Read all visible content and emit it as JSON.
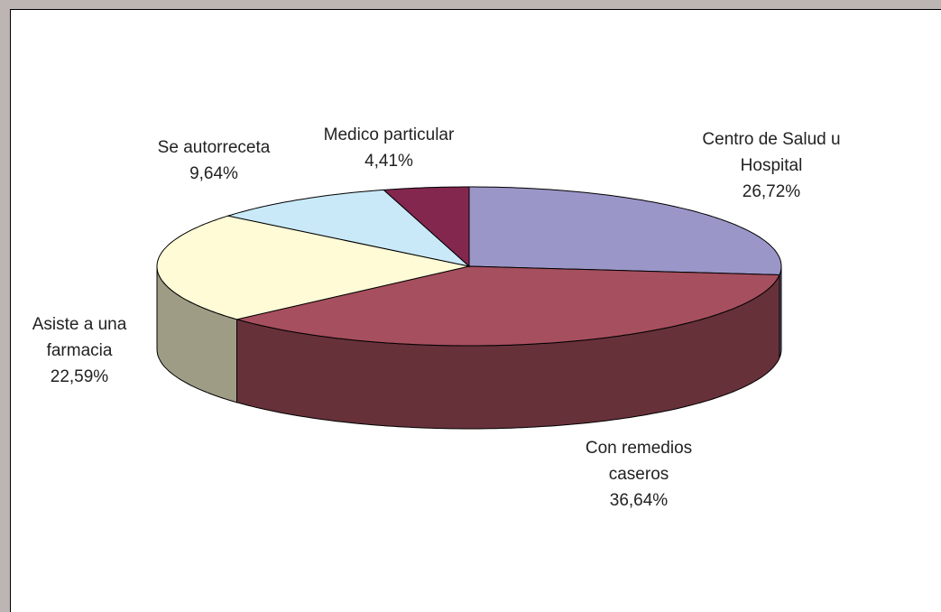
{
  "chart_data": {
    "type": "pie3d",
    "categories": [
      "Centro de Salud u Hospital",
      "Con remedios caseros",
      "Asiste a una farmacia",
      "Se autorreceta",
      "Medico particular"
    ],
    "values": [
      26.72,
      36.64,
      22.59,
      9.64,
      4.41
    ],
    "value_labels": [
      "26,72%",
      "36,64%",
      "22,59%",
      "9,64%",
      "4,41%"
    ],
    "colors": [
      "#9b96c8",
      "#a64f5e",
      "#fffbd6",
      "#c9e9f8",
      "#83274f"
    ]
  }
}
